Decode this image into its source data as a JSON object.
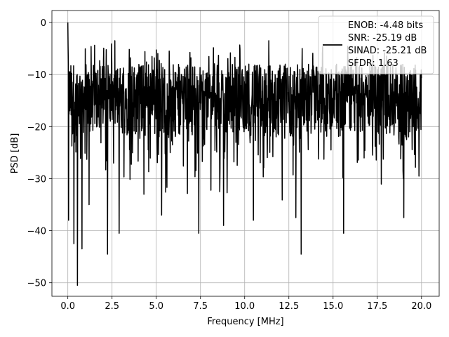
{
  "chart_data": {
    "type": "line",
    "title": "",
    "xlabel": "Frequency [MHz]",
    "ylabel": "PSD [dB]",
    "xlim": [
      -0.9,
      21.0
    ],
    "ylim": [
      -52.6,
      2.3
    ],
    "xticks": [
      0.0,
      2.5,
      5.0,
      7.5,
      10.0,
      12.5,
      15.0,
      17.5,
      20.0
    ],
    "xtick_labels": [
      "0.0",
      "2.5",
      "5.0",
      "7.5",
      "10.0",
      "12.5",
      "15.0",
      "17.5",
      "20.0"
    ],
    "yticks": [
      0,
      -10,
      -20,
      -30,
      -40,
      -50
    ],
    "ytick_labels": [
      "0",
      "−10",
      "−20",
      "−30",
      "−40",
      "−50"
    ],
    "grid": true,
    "legend_position": "top-right",
    "series": [
      {
        "name": "ENOB: -4.48 bits\nSNR: -25.19 dB\nSINAD: -25.21 dB\nSFDR: 1.63",
        "color": "#000000",
        "x_range": [
          0.0,
          20.0
        ],
        "noise_floor_typical": [
          -22,
          -8
        ],
        "peak": {
          "x": 0.0,
          "y": 0.0
        },
        "notable_dips": [
          {
            "x": 0.05,
            "y": -38
          },
          {
            "x": 0.35,
            "y": -42.5
          },
          {
            "x": 0.55,
            "y": -50.5
          },
          {
            "x": 0.8,
            "y": -43.5
          },
          {
            "x": 1.2,
            "y": -35
          },
          {
            "x": 2.25,
            "y": -44.5
          },
          {
            "x": 2.9,
            "y": -40.5
          },
          {
            "x": 4.3,
            "y": -33
          },
          {
            "x": 5.3,
            "y": -37
          },
          {
            "x": 7.4,
            "y": -40.5
          },
          {
            "x": 8.8,
            "y": -39
          },
          {
            "x": 10.5,
            "y": -38
          },
          {
            "x": 12.9,
            "y": -37.5
          },
          {
            "x": 13.2,
            "y": -44.5
          },
          {
            "x": 15.6,
            "y": -40.5
          },
          {
            "x": 19.0,
            "y": -37.5
          }
        ]
      }
    ]
  }
}
